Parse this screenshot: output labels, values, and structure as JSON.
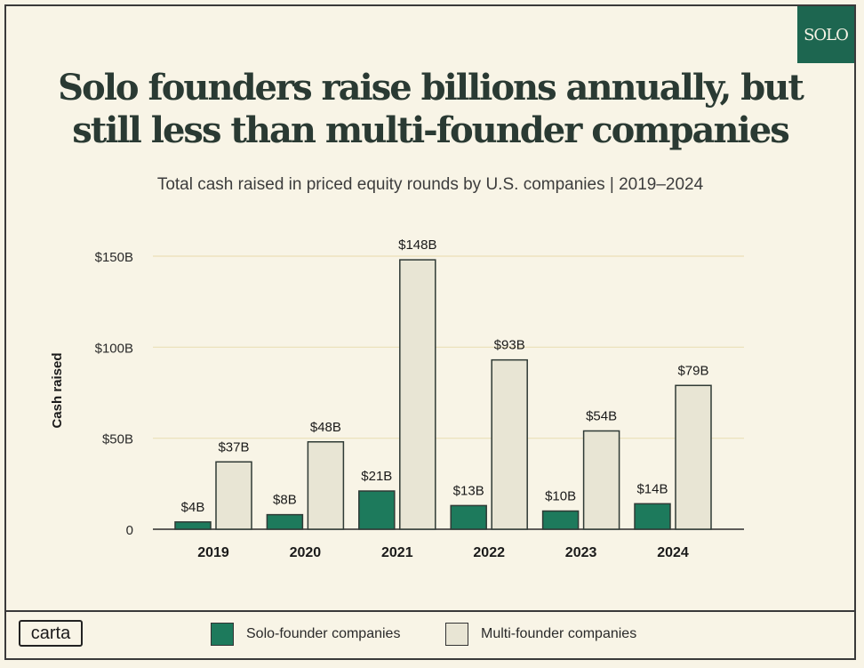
{
  "badge": "SOLO",
  "title_line1": "Solo founders raise billions annually, but",
  "title_line2": "still less than multi-founder companies",
  "subtitle": "Total cash raised in priced equity rounds by U.S. companies | 2019–2024",
  "logo": "carta",
  "legend": {
    "solo": "Solo-founder companies",
    "multi": "Multi-founder companies"
  },
  "colors": {
    "solo": "#1d7a5c",
    "multi": "#e8e5d4",
    "grid": "#eadfb7",
    "stroke": "#2f3a35"
  },
  "chart_data": {
    "type": "bar",
    "title": "Solo founders raise billions annually, but still less than multi-founder companies",
    "xlabel": "",
    "ylabel": "Cash raised",
    "ylim": [
      0,
      150
    ],
    "yticks": [
      {
        "value": 0,
        "label": "0"
      },
      {
        "value": 50,
        "label": "$50B"
      },
      {
        "value": 100,
        "label": "$100B"
      },
      {
        "value": 150,
        "label": "$150B"
      }
    ],
    "categories": [
      "2019",
      "2020",
      "2021",
      "2022",
      "2023",
      "2024"
    ],
    "series": [
      {
        "name": "Solo-founder companies",
        "values": [
          4,
          8,
          21,
          13,
          10,
          14
        ],
        "labels": [
          "$4B",
          "$8B",
          "$21B",
          "$13B",
          "$10B",
          "$14B"
        ]
      },
      {
        "name": "Multi-founder companies",
        "values": [
          37,
          48,
          148,
          93,
          54,
          79
        ],
        "labels": [
          "$37B",
          "$48B",
          "$148B",
          "$93B",
          "$54B",
          "$79B"
        ]
      }
    ],
    "grid": true,
    "legend_position": "bottom"
  }
}
